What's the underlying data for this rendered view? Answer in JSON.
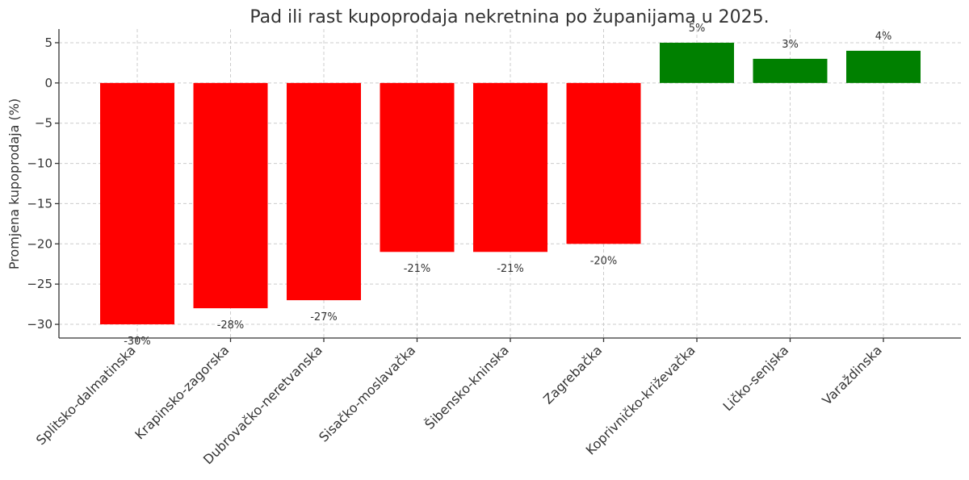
{
  "chart_data": {
    "type": "bar",
    "title": "Pad ili rast kupoprodaja nekretnina po županijama u 2025.",
    "xlabel": "",
    "ylabel": "Promjena kupoprodaja (%)",
    "categories": [
      "Splitsko-dalmatinska",
      "Krapinsko-zagorska",
      "Dubrovačko-neretvanska",
      "Sisačko-moslavačka",
      "Šibensko-kninska",
      "Zagrebačka",
      "Koprivničko-križevačka",
      "Ličko-senjska",
      "Varaždinska"
    ],
    "values": [
      -30,
      -28,
      -27,
      -21,
      -21,
      -20,
      5,
      3,
      4
    ],
    "data_labels": [
      "-30%",
      "-28%",
      "-27%",
      "-21%",
      "-21%",
      "-20%",
      "5%",
      "3%",
      "4%"
    ],
    "colors": {
      "negative": "#ff0000",
      "positive": "#008000"
    },
    "ylim": [
      -31.7,
      6.7
    ],
    "yticks": [
      5,
      0,
      -5,
      -10,
      -15,
      -20,
      -25,
      -30
    ],
    "ytick_labels": [
      "5",
      "0",
      "−5",
      "−10",
      "−15",
      "−20",
      "−25",
      "−30"
    ],
    "grid": true,
    "legend": "none"
  }
}
